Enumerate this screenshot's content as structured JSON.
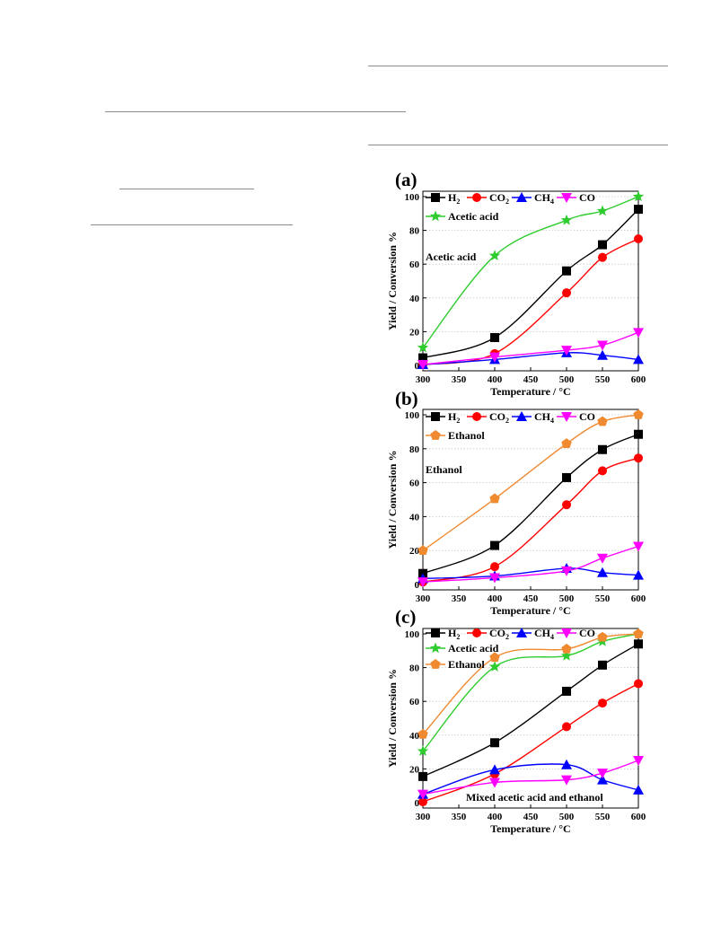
{
  "colors": {
    "H2": "#000000",
    "CO2": "#ff0000",
    "CH4": "#0000ff",
    "CO": "#ff00ff",
    "Acetic acid": "#2ecc2e",
    "Ethanol": "#f08a30"
  },
  "chart_data": [
    {
      "type": "line",
      "panel_label": "(a)",
      "annotation": "Acetic acid",
      "xlabel": "Temperature / °C",
      "ylabel": "Yield / Conversion %",
      "xlim": [
        300,
        600
      ],
      "ylim": [
        0,
        100
      ],
      "xticks": [
        300,
        350,
        400,
        450,
        500,
        550,
        600
      ],
      "yticks": [
        0,
        20,
        40,
        60,
        80,
        100
      ],
      "grid": "horizontal dotted",
      "legend": [
        {
          "main": "H",
          "sub": "2"
        },
        {
          "main": "CO",
          "sub": "2"
        },
        {
          "main": "CH",
          "sub": "4"
        },
        {
          "main": "CO",
          "sub": ""
        },
        {
          "main": "Acetic acid",
          "sub": ""
        }
      ],
      "series": [
        {
          "key": "H2",
          "marker": "square",
          "points": [
            [
              300,
              4.5
            ],
            [
              400,
              16.5
            ],
            [
              500,
              56
            ],
            [
              550,
              71.5
            ],
            [
              600,
              92.5
            ]
          ]
        },
        {
          "key": "CO2",
          "marker": "circle",
          "points": [
            [
              300,
              0.5
            ],
            [
              400,
              7
            ],
            [
              500,
              43
            ],
            [
              550,
              64
            ],
            [
              600,
              75
            ]
          ]
        },
        {
          "key": "CH4",
          "marker": "triangle-up",
          "points": [
            [
              300,
              0.5
            ],
            [
              400,
              3.5
            ],
            [
              500,
              7.5
            ],
            [
              550,
              6
            ],
            [
              600,
              3.5
            ]
          ]
        },
        {
          "key": "CO",
          "marker": "triangle-down",
          "points": [
            [
              300,
              0.5
            ],
            [
              400,
              5
            ],
            [
              500,
              9
            ],
            [
              550,
              12
            ],
            [
              600,
              19.5
            ]
          ]
        },
        {
          "key": "Acetic acid",
          "marker": "star",
          "points": [
            [
              300,
              10.5
            ],
            [
              400,
              65
            ],
            [
              500,
              86
            ],
            [
              550,
              91.5
            ],
            [
              600,
              100
            ]
          ]
        }
      ]
    },
    {
      "type": "line",
      "panel_label": "(b)",
      "annotation": "Ethanol",
      "xlabel": "Temperature / °C",
      "ylabel": "Yield / Conversion %",
      "xlim": [
        300,
        600
      ],
      "ylim": [
        0,
        100
      ],
      "xticks": [
        300,
        350,
        400,
        450,
        500,
        550,
        600
      ],
      "yticks": [
        0,
        20,
        40,
        60,
        80,
        100
      ],
      "grid": "horizontal dotted",
      "legend": [
        {
          "main": "H",
          "sub": "2"
        },
        {
          "main": "CO",
          "sub": "2"
        },
        {
          "main": "CH",
          "sub": "4"
        },
        {
          "main": "CO",
          "sub": ""
        },
        {
          "main": "Ethanol",
          "sub": ""
        }
      ],
      "series": [
        {
          "key": "H2",
          "marker": "square",
          "points": [
            [
              300,
              6.5
            ],
            [
              400,
              23
            ],
            [
              500,
              63
            ],
            [
              550,
              79.5
            ],
            [
              600,
              88.5
            ]
          ]
        },
        {
          "key": "CO2",
          "marker": "circle",
          "points": [
            [
              300,
              1.5
            ],
            [
              400,
              10.5
            ],
            [
              500,
              47
            ],
            [
              550,
              67
            ],
            [
              600,
              74.5
            ]
          ]
        },
        {
          "key": "CH4",
          "marker": "triangle-up",
          "points": [
            [
              300,
              3.5
            ],
            [
              400,
              5
            ],
            [
              500,
              9.5
            ],
            [
              550,
              7
            ],
            [
              600,
              5.5
            ]
          ]
        },
        {
          "key": "CO",
          "marker": "triangle-down",
          "points": [
            [
              300,
              1.5
            ],
            [
              400,
              4
            ],
            [
              500,
              8
            ],
            [
              550,
              15.5
            ],
            [
              600,
              22.5
            ]
          ]
        },
        {
          "key": "Ethanol",
          "marker": "pentagon",
          "points": [
            [
              300,
              20
            ],
            [
              400,
              50.5
            ],
            [
              500,
              83
            ],
            [
              550,
              96
            ],
            [
              600,
              100
            ]
          ]
        }
      ]
    },
    {
      "type": "line",
      "panel_label": "(c)",
      "annotation": "Mixed acetic acid and ethanol",
      "xlabel": "Temperature / °C",
      "ylabel": "Yield / Conversion %",
      "xlim": [
        300,
        600
      ],
      "ylim": [
        0,
        100
      ],
      "xticks": [
        300,
        350,
        400,
        450,
        500,
        550,
        600
      ],
      "yticks": [
        0,
        20,
        40,
        60,
        80,
        100
      ],
      "grid": "horizontal dotted",
      "legend": [
        {
          "main": "H",
          "sub": "2"
        },
        {
          "main": "CO",
          "sub": "2"
        },
        {
          "main": "CH",
          "sub": "4"
        },
        {
          "main": "CO",
          "sub": ""
        },
        {
          "main": "Acetic acid",
          "sub": ""
        },
        {
          "main": "Ethanol",
          "sub": ""
        }
      ],
      "series": [
        {
          "key": "H2",
          "marker": "square",
          "points": [
            [
              300,
              15.5
            ],
            [
              400,
              35.5
            ],
            [
              500,
              66
            ],
            [
              550,
              81.5
            ],
            [
              600,
              94
            ]
          ]
        },
        {
          "key": "CO2",
          "marker": "circle",
          "points": [
            [
              300,
              0.5
            ],
            [
              400,
              17
            ],
            [
              500,
              45
            ],
            [
              550,
              59
            ],
            [
              600,
              70.5
            ]
          ]
        },
        {
          "key": "CH4",
          "marker": "triangle-up",
          "points": [
            [
              300,
              5
            ],
            [
              400,
              19.5
            ],
            [
              500,
              22.5
            ],
            [
              550,
              13.5
            ],
            [
              600,
              7.5
            ]
          ]
        },
        {
          "key": "CO",
          "marker": "triangle-down",
          "points": [
            [
              300,
              5
            ],
            [
              400,
              12
            ],
            [
              500,
              13.5
            ],
            [
              550,
              17.5
            ],
            [
              600,
              25
            ]
          ]
        },
        {
          "key": "Acetic acid",
          "marker": "star",
          "points": [
            [
              300,
              30.5
            ],
            [
              400,
              80.5
            ],
            [
              500,
              87
            ],
            [
              550,
              95.5
            ],
            [
              600,
              100
            ]
          ]
        },
        {
          "key": "Ethanol",
          "marker": "pentagon",
          "points": [
            [
              300,
              40.5
            ],
            [
              400,
              86
            ],
            [
              500,
              91
            ],
            [
              550,
              98
            ],
            [
              600,
              100
            ]
          ]
        }
      ]
    }
  ]
}
